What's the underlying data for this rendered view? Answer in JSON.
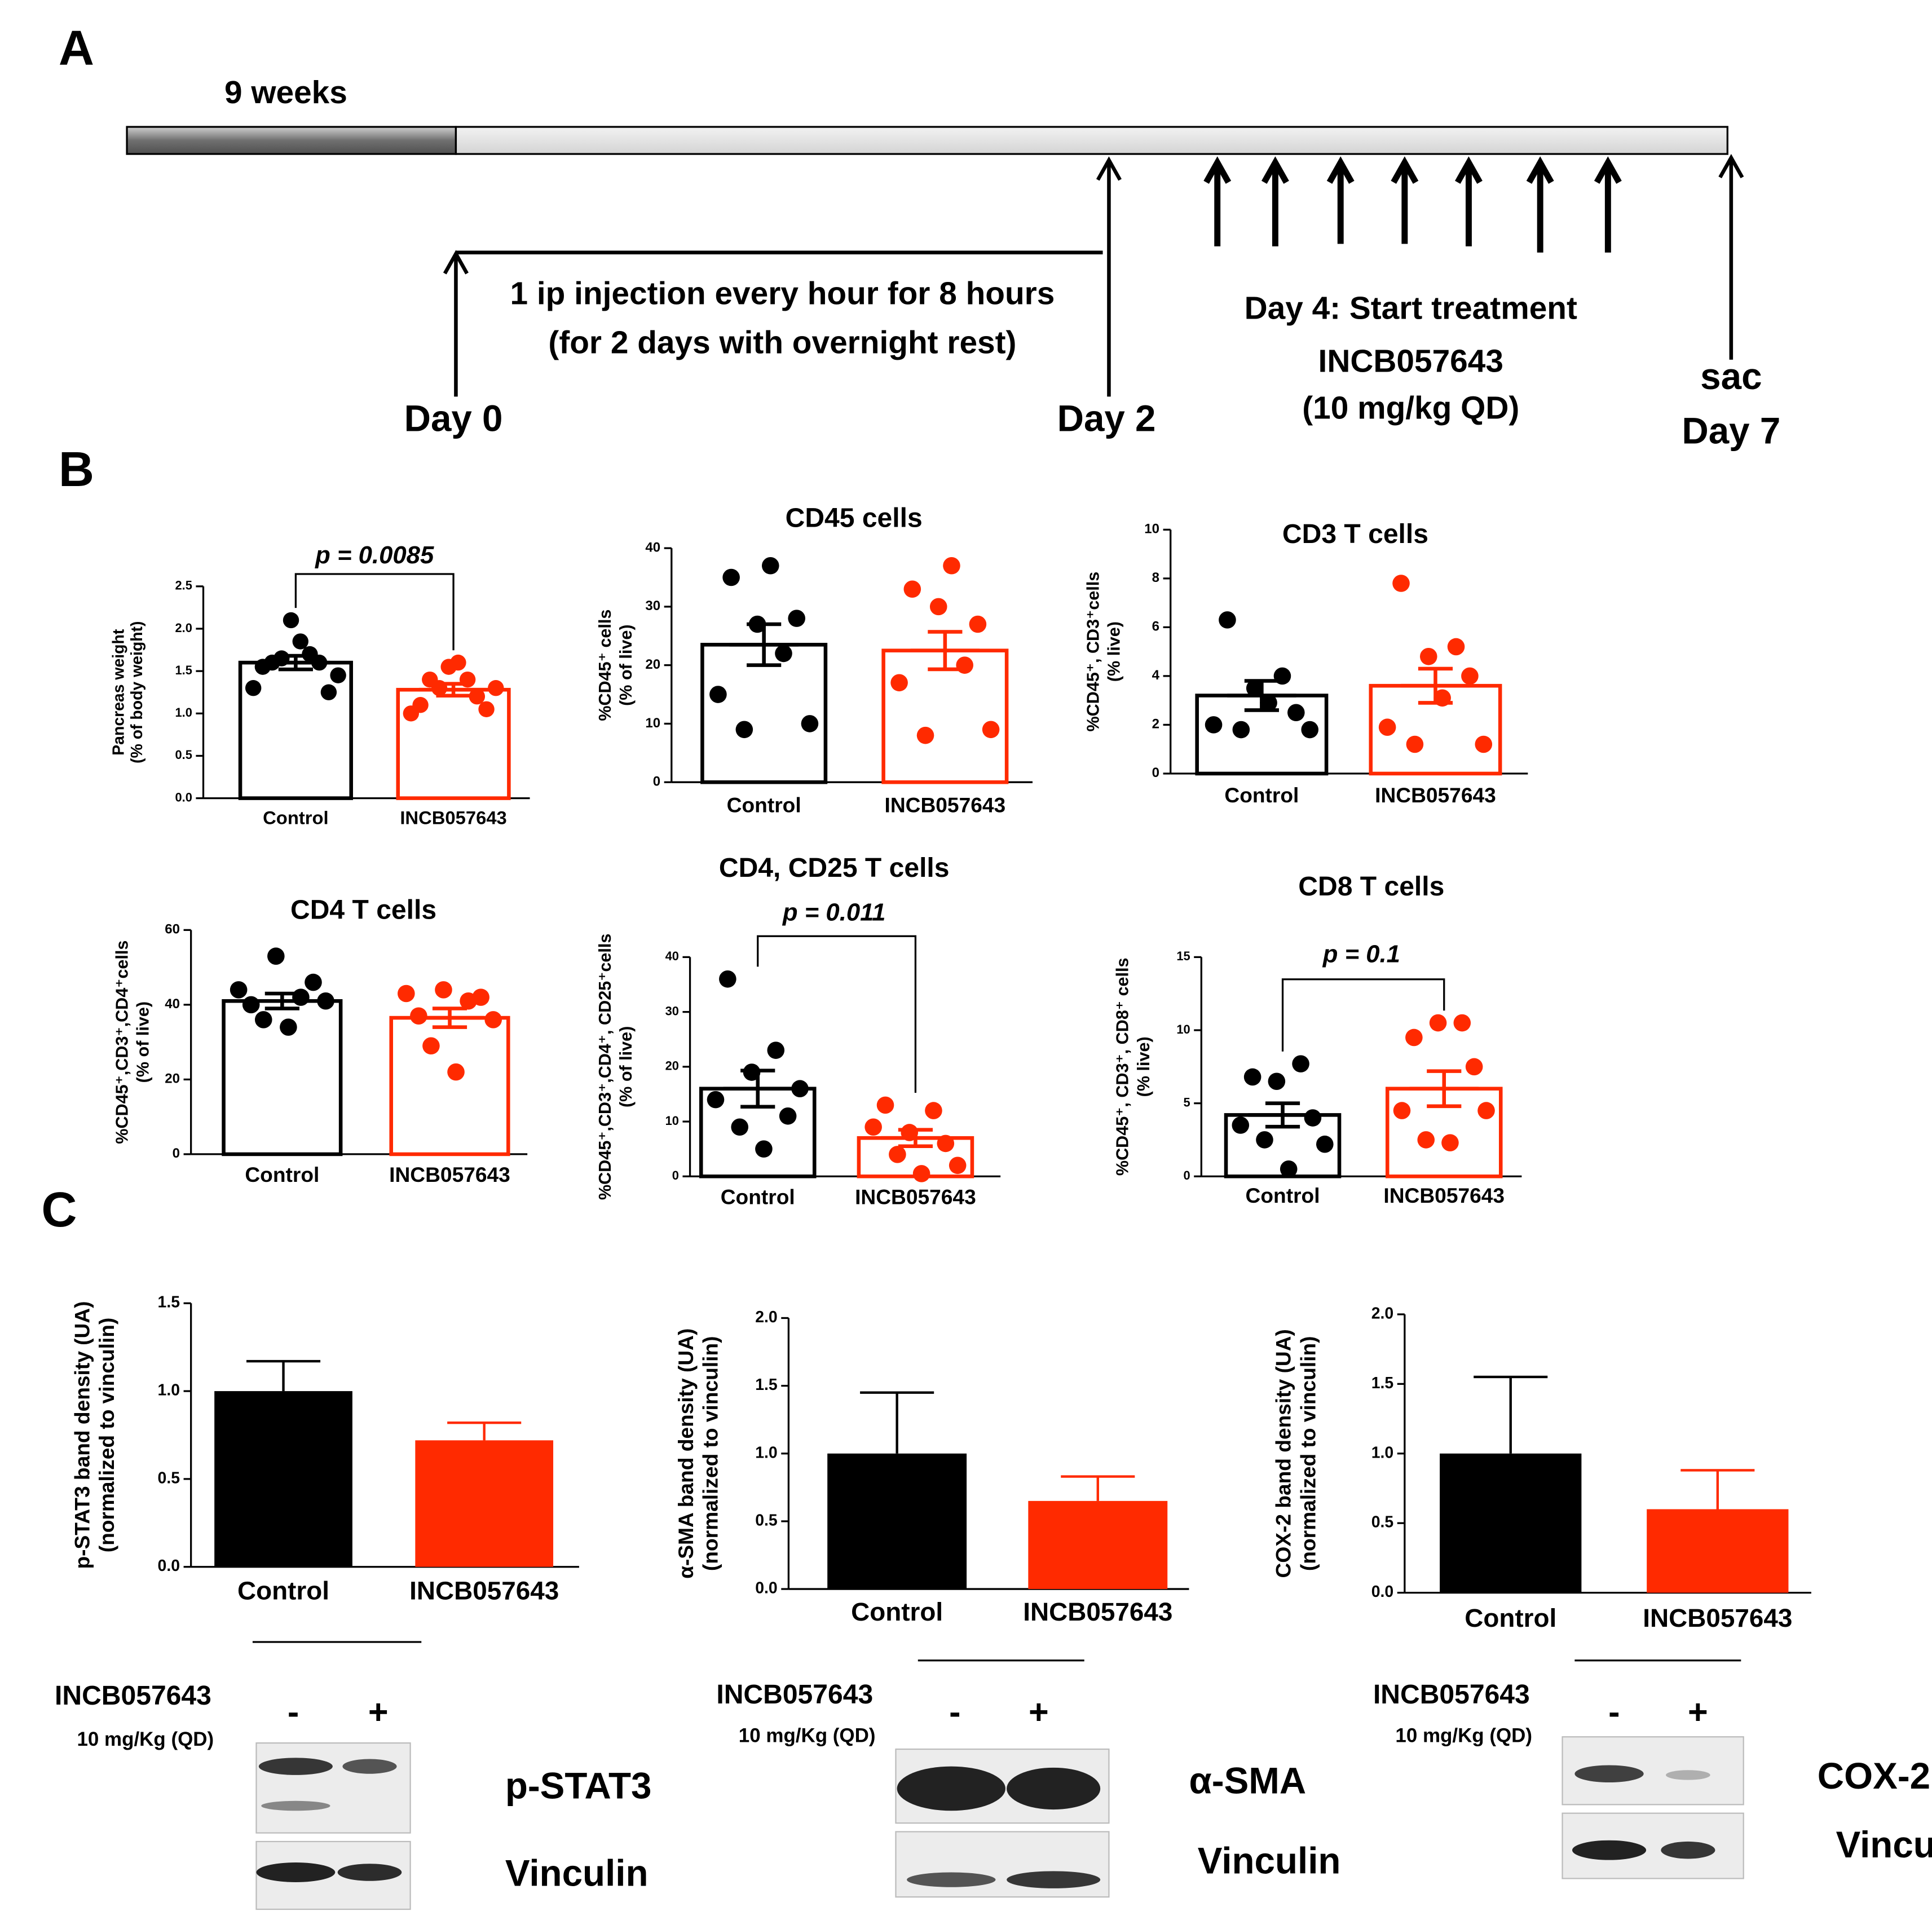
{
  "panel_labels": [
    "A",
    "B",
    "C"
  ],
  "timeline": {
    "weeks": "9 weeks",
    "injection": [
      "1 ip injection every hour for 8 hours",
      "(for 2 days with overnight rest)"
    ],
    "day0": "Day 0",
    "day2": "Day 2",
    "treatment_start": "Day 4: Start treatment",
    "drug": "INCB057643",
    "dose": "(10 mg/kg QD)",
    "sac": "sac",
    "day7": "Day 7"
  },
  "chart_data": [
    {
      "type": "dotbar",
      "ylabel": [
        "Pancreas weight",
        "(% of body weight)"
      ],
      "annotation": "p = 0.0085",
      "categories": [
        "Control",
        "INCB057643"
      ],
      "colors": [
        "#000000",
        "#ff2a00"
      ],
      "values": [
        1.6,
        1.28
      ],
      "errors": [
        0.08,
        0.07
      ],
      "points": [
        [
          1.3,
          1.55,
          1.6,
          1.65,
          2.1,
          1.85,
          1.7,
          1.6,
          1.25,
          1.45
        ],
        [
          1.0,
          1.1,
          1.4,
          1.3,
          1.55,
          1.6,
          1.4,
          1.2,
          1.05,
          1.3
        ]
      ],
      "ylim": [
        0,
        2.5
      ],
      "yticks": [
        {
          "value": 0,
          "label": "0.0"
        },
        {
          "value": 0.5,
          "label": "0.5"
        },
        {
          "value": 1,
          "label": "1.0"
        },
        {
          "value": 1.5,
          "label": "1.5"
        },
        {
          "value": 2,
          "label": "2.0"
        },
        {
          "value": 2.5,
          "label": "2.5"
        }
      ]
    },
    {
      "type": "dotbar",
      "title": "CD45 cells",
      "ylabel": [
        "%CD45⁺ cells",
        "(% of live)"
      ],
      "categories": [
        "Control",
        "INCB057643"
      ],
      "colors": [
        "#000000",
        "#ff2a00"
      ],
      "values": [
        23.5,
        22.5
      ],
      "errors": [
        3.5,
        3.2
      ],
      "points": [
        [
          15,
          35,
          9,
          27,
          37,
          22,
          28,
          10
        ],
        [
          17,
          33,
          8,
          30,
          37,
          20,
          27,
          9
        ]
      ],
      "ylim": [
        0,
        40
      ],
      "yticks": [
        0,
        10,
        20,
        30,
        40
      ]
    },
    {
      "type": "dotbar",
      "title": "CD3 T cells",
      "ylabel": [
        "%CD45⁺, CD3⁺cells",
        "(% live)"
      ],
      "categories": [
        "Control",
        "INCB057643"
      ],
      "colors": [
        "#000000",
        "#ff2a00"
      ],
      "values": [
        3.2,
        3.6
      ],
      "errors": [
        0.6,
        0.7
      ],
      "points": [
        [
          2.0,
          6.3,
          1.8,
          3.5,
          2.9,
          4.0,
          2.5,
          1.8
        ],
        [
          1.9,
          7.8,
          1.2,
          4.8,
          3.1,
          5.2,
          4.0,
          1.2
        ]
      ],
      "ylim": [
        0,
        10
      ],
      "yticks": [
        0,
        2,
        4,
        6,
        8,
        10
      ]
    },
    {
      "type": "dotbar",
      "title": "CD4 T cells",
      "ylabel": [
        "%CD45⁺,CD3⁺,CD4⁺cells",
        "(% of live)"
      ],
      "categories": [
        "Control",
        "INCB057643"
      ],
      "colors": [
        "#000000",
        "#ff2a00"
      ],
      "values": [
        41,
        36.5
      ],
      "errors": [
        2,
        2.5
      ],
      "points": [
        [
          44,
          40,
          36,
          53,
          34,
          42,
          46,
          41
        ],
        [
          43,
          37,
          29,
          44,
          22,
          41,
          42,
          36
        ]
      ],
      "ylim": [
        0,
        60
      ],
      "yticks": [
        0,
        20,
        40,
        60
      ]
    },
    {
      "type": "dotbar",
      "title": "CD4, CD25 T cells",
      "ylabel": [
        "%CD45⁺,CD3⁺,CD4⁺, CD25⁺cells",
        "(% of live)"
      ],
      "annotation": "p = 0.011",
      "categories": [
        "Control",
        "INCB057643"
      ],
      "colors": [
        "#000000",
        "#ff2a00"
      ],
      "values": [
        16,
        7
      ],
      "errors": [
        3.3,
        1.5
      ],
      "points": [
        [
          14,
          36,
          9,
          19,
          5,
          23,
          11,
          16
        ],
        [
          9,
          13,
          4,
          8,
          0.5,
          12,
          6,
          2
        ]
      ],
      "ylim": [
        0,
        40
      ],
      "yticks": [
        0,
        10,
        20,
        30,
        40
      ]
    },
    {
      "type": "dotbar",
      "title": "CD8 T cells",
      "ylabel": [
        "%CD45⁺, CD3⁺, CD8⁺ cells",
        "(% live)"
      ],
      "annotation": "p = 0.1",
      "categories": [
        "Control",
        "INCB057643"
      ],
      "colors": [
        "#000000",
        "#ff2a00"
      ],
      "values": [
        4.2,
        6
      ],
      "errors": [
        0.8,
        1.2
      ],
      "points": [
        [
          3.5,
          6.8,
          2.5,
          6.5,
          0.5,
          7.7,
          4,
          2.2
        ],
        [
          4.5,
          9.5,
          2.5,
          10.5,
          2.3,
          10.5,
          7.5,
          4.5
        ]
      ],
      "ylim": [
        0,
        15
      ],
      "yticks": [
        0,
        5,
        10,
        15
      ]
    },
    {
      "type": "bar",
      "ylabel": [
        "p-STAT3 band density (UA)",
        "(normalized to vinculin)"
      ],
      "categories": [
        "Control",
        "INCB057643"
      ],
      "colors": [
        "#000000",
        "#ff2a00"
      ],
      "values": [
        1.0,
        0.72
      ],
      "errors": [
        0.17,
        0.1
      ],
      "ylim": [
        0,
        1.5
      ],
      "yticks": [
        {
          "value": 0,
          "label": "0.0"
        },
        {
          "value": 0.5,
          "label": "0.5"
        },
        {
          "value": 1,
          "label": "1.0"
        },
        {
          "value": 1.5,
          "label": "1.5"
        }
      ]
    },
    {
      "type": "bar",
      "ylabel": [
        "α-SMA band density (UA)",
        "(normalized to vinculin)"
      ],
      "categories": [
        "Control",
        "INCB057643"
      ],
      "colors": [
        "#000000",
        "#ff2a00"
      ],
      "values": [
        1.0,
        0.65
      ],
      "errors": [
        0.45,
        0.18
      ],
      "ylim": [
        0,
        2
      ],
      "yticks": [
        {
          "value": 0,
          "label": "0.0"
        },
        {
          "value": 0.5,
          "label": "0.5"
        },
        {
          "value": 1,
          "label": "1.0"
        },
        {
          "value": 1.5,
          "label": "1.5"
        },
        {
          "value": 2,
          "label": "2.0"
        }
      ]
    },
    {
      "type": "bar",
      "ylabel": [
        "COX-2 band density (UA)",
        "(normalized to vinculin)"
      ],
      "categories": [
        "Control",
        "INCB057643"
      ],
      "colors": [
        "#000000",
        "#ff2a00"
      ],
      "values": [
        1.0,
        0.6
      ],
      "errors": [
        0.55,
        0.28
      ],
      "ylim": [
        0,
        2
      ],
      "yticks": [
        {
          "value": 0,
          "label": "0.0"
        },
        {
          "value": 0.5,
          "label": "0.5"
        },
        {
          "value": 1,
          "label": "1.0"
        },
        {
          "value": 1.5,
          "label": "1.5"
        },
        {
          "value": 2,
          "label": "2.0"
        }
      ]
    }
  ],
  "blots": [
    {
      "treatment": "INCB057643",
      "dose": "10 mg/Kg (QD)",
      "minus": "-",
      "plus": "+",
      "target": "p-STAT3",
      "loading": "Vinculin"
    },
    {
      "treatment": "INCB057643",
      "dose": "10 mg/Kg (QD)",
      "minus": "-",
      "plus": "+",
      "target": "α-SMA",
      "loading": "Vinculin"
    },
    {
      "treatment": "INCB057643",
      "dose": "10 mg/Kg (QD)",
      "minus": "-",
      "plus": "+",
      "target": "COX-2",
      "loading": "Vinculin"
    }
  ]
}
